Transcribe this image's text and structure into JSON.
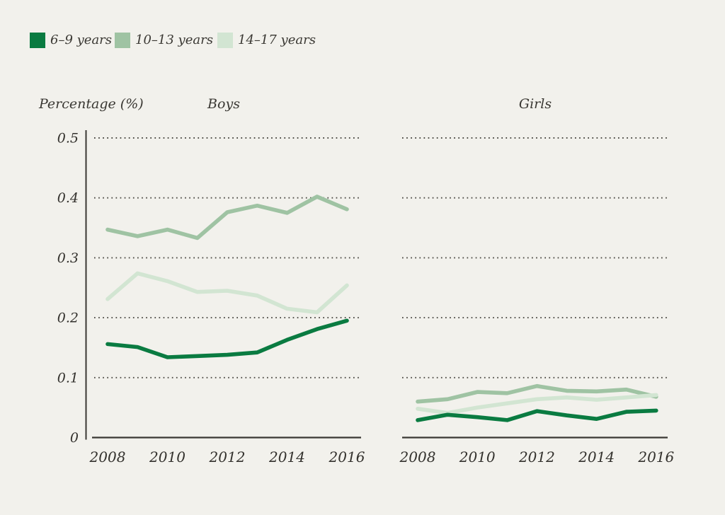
{
  "page": {
    "background_color": "#f2f1ec",
    "text_color": "#3a3833"
  },
  "legend": {
    "items": [
      {
        "label": "6–9 years",
        "color": "#0a7b41"
      },
      {
        "label": "10–13 years",
        "color": "#9fc3a3"
      },
      {
        "label": "14–17 years",
        "color": "#d2e5d2"
      }
    ]
  },
  "chart_data": {
    "type": "line",
    "title": "",
    "ylabel": "Percentage (%)",
    "xlabel": "",
    "x": [
      2008,
      2009,
      2010,
      2011,
      2012,
      2013,
      2014,
      2015,
      2016
    ],
    "x_tick_labels": [
      "2008",
      "2010",
      "2012",
      "2014",
      "2016"
    ],
    "x_tick_years": [
      2008,
      2010,
      2012,
      2014,
      2016
    ],
    "y_tick_labels": [
      "0",
      "0.1",
      "0.2",
      "0.3",
      "0.4",
      "0.5"
    ],
    "y_tick_values": [
      0,
      0.1,
      0.2,
      0.3,
      0.4,
      0.5
    ],
    "ylim": [
      0,
      0.5
    ],
    "grid": "dotted-horizontal",
    "legend_position": "top-left",
    "panels": [
      {
        "title": "Boys",
        "series": [
          {
            "name": "6–9 years",
            "color": "#0a7b41",
            "values": [
              0.156,
              0.151,
              0.134,
              0.136,
              0.138,
              0.142,
              0.163,
              0.181,
              0.195
            ]
          },
          {
            "name": "10–13 years",
            "color": "#9fc3a3",
            "values": [
              0.347,
              0.336,
              0.347,
              0.333,
              0.376,
              0.387,
              0.375,
              0.402,
              0.381
            ]
          },
          {
            "name": "14–17 years",
            "color": "#d2e5d2",
            "values": [
              0.231,
              0.274,
              0.261,
              0.243,
              0.245,
              0.237,
              0.215,
              0.209,
              0.254
            ]
          }
        ]
      },
      {
        "title": "Girls",
        "series": [
          {
            "name": "6–9 years",
            "color": "#0a7b41",
            "values": [
              0.029,
              0.038,
              0.034,
              0.029,
              0.044,
              0.037,
              0.031,
              0.043,
              0.045
            ]
          },
          {
            "name": "10–13 years",
            "color": "#9fc3a3",
            "values": [
              0.06,
              0.064,
              0.076,
              0.074,
              0.086,
              0.078,
              0.077,
              0.08,
              0.068
            ]
          },
          {
            "name": "14–17 years",
            "color": "#d2e5d2",
            "values": [
              0.048,
              0.041,
              0.05,
              0.057,
              0.064,
              0.067,
              0.063,
              0.067,
              0.071
            ]
          }
        ]
      }
    ]
  }
}
